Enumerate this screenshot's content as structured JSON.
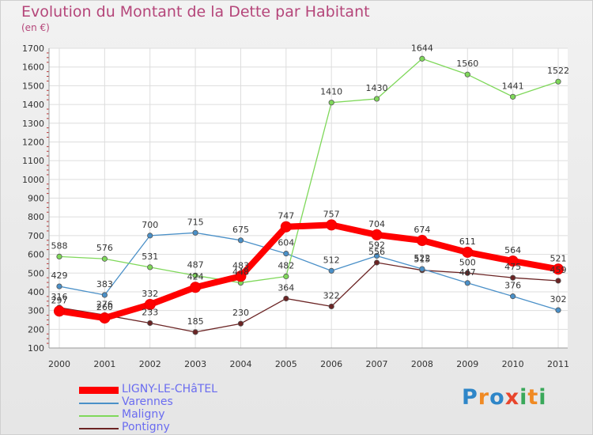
{
  "chart_data": {
    "type": "line",
    "title": "Evolution du Montant de la Dette par Habitant",
    "unit_label": "(en €)",
    "ylim": [
      100,
      1700
    ],
    "y_ticks": [
      100,
      200,
      300,
      400,
      500,
      600,
      700,
      800,
      900,
      1000,
      1100,
      1200,
      1300,
      1400,
      1500,
      1600,
      1700
    ],
    "x": [
      "2000",
      "2001",
      "2002",
      "2003",
      "2004",
      "2005",
      "2006",
      "2007",
      "2008",
      "2009",
      "2010",
      "2011"
    ],
    "grid": true,
    "legend_position": "bottom-left",
    "series": [
      {
        "name": "LIGNY-LE-CHâTEL",
        "color": "#ff0000",
        "values": [
          297,
          260,
          332,
          424,
          483,
          747,
          757,
          704,
          674,
          611,
          564,
          521
        ]
      },
      {
        "name": "Varennes",
        "color": "#4a90c8",
        "values": [
          429,
          383,
          700,
          715,
          675,
          604,
          512,
          592,
          522,
          447,
          376,
          302
        ]
      },
      {
        "name": "Maligny",
        "color": "#7fd85a",
        "values": [
          588,
          576,
          531,
          487,
          448,
          482,
          1410,
          1430,
          1644,
          1560,
          1441,
          1522
        ]
      },
      {
        "name": "Pontigny",
        "color": "#6b2424",
        "values": [
          316,
          276,
          233,
          185,
          230,
          364,
          322,
          556,
          515,
          500,
          475,
          459
        ]
      }
    ]
  },
  "brand": {
    "letters": [
      "P",
      "r",
      "o",
      "x",
      "i",
      "t",
      "i"
    ],
    "colors": [
      "#2e86c8",
      "#f08a24",
      "#2e86c8",
      "#e8452c",
      "#3aa85a",
      "#f08a24",
      "#3aa85a"
    ]
  }
}
